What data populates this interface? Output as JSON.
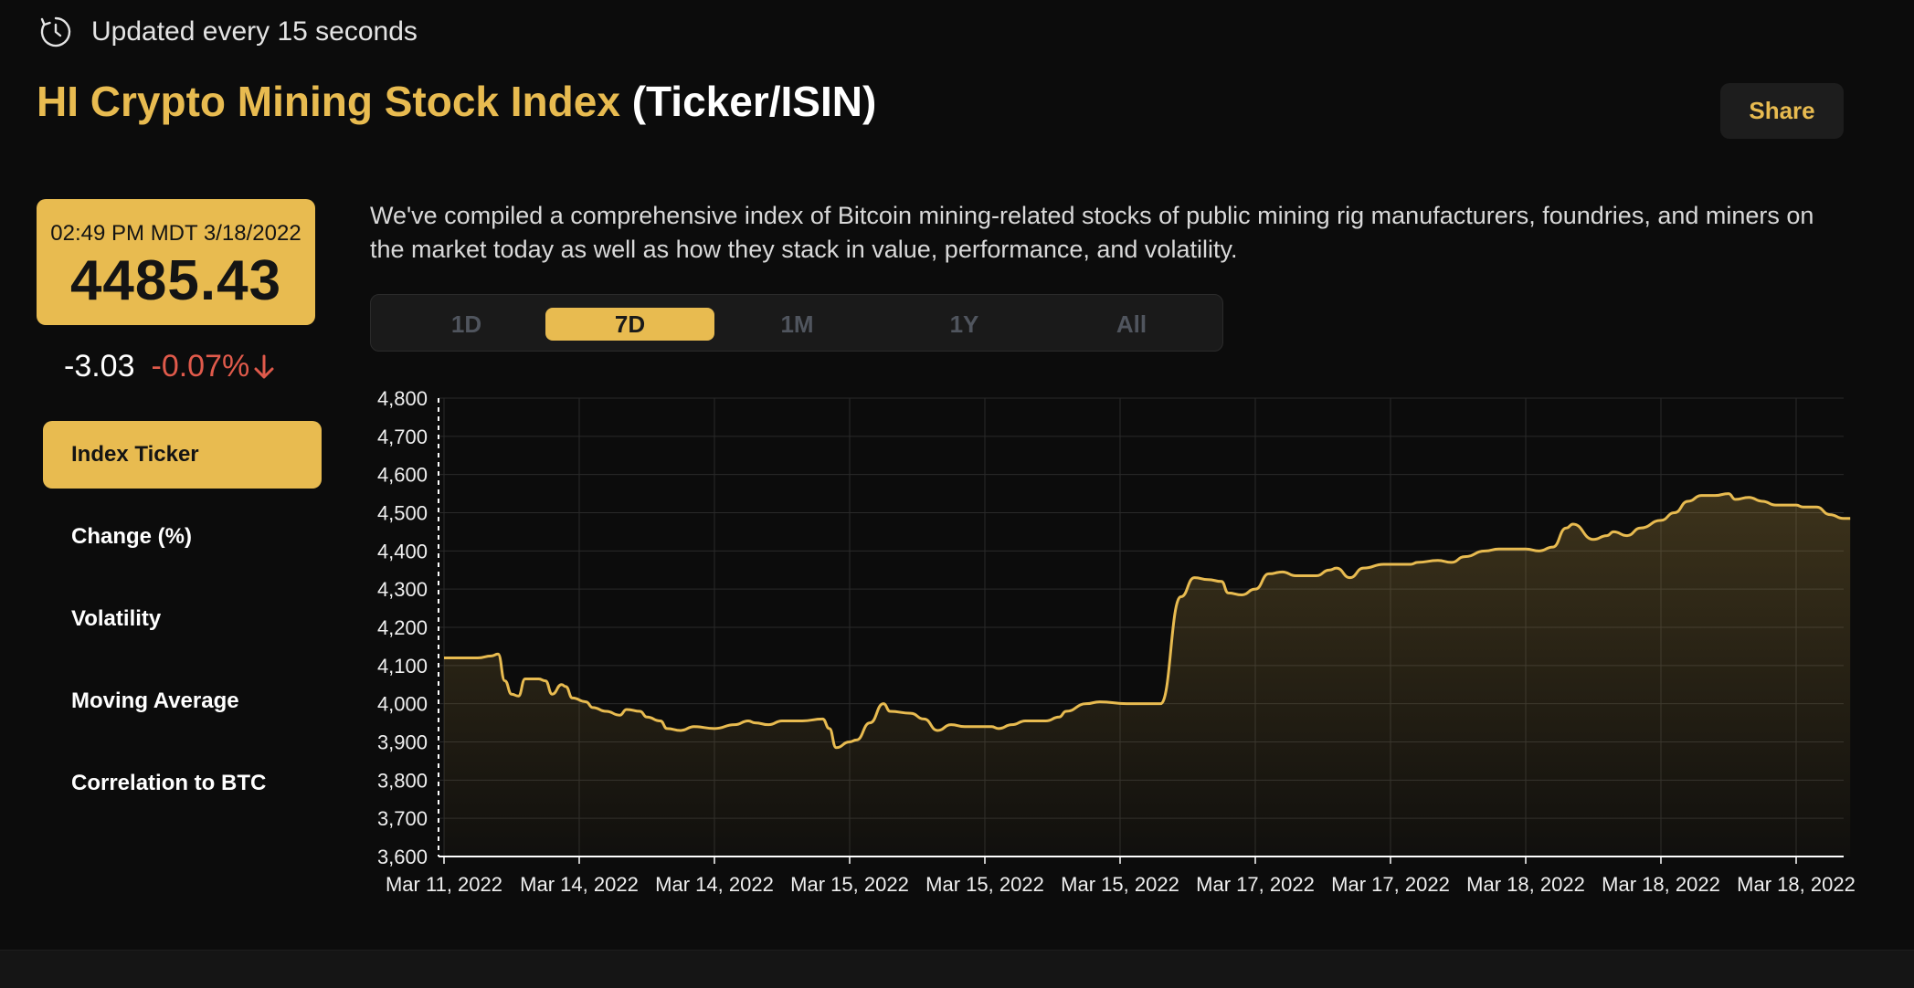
{
  "update": {
    "text": "Updated every 15 seconds",
    "icon": "refresh-icon"
  },
  "header": {
    "title_accent": "HI Crypto Mining Stock Index",
    "title_suffix": "(Ticker/ISIN)",
    "share_label": "Share"
  },
  "price_card": {
    "timestamp": "02:49 PM MDT 3/18/2022",
    "value": "4485.43"
  },
  "change": {
    "absolute": "-3.03",
    "percent": "-0.07%",
    "direction_icon": "arrow-down-icon"
  },
  "sidebar": {
    "items": [
      {
        "label": "Index Ticker",
        "active": true
      },
      {
        "label": "Change (%)",
        "active": false
      },
      {
        "label": "Volatility",
        "active": false
      },
      {
        "label": "Moving Average",
        "active": false
      },
      {
        "label": "Correlation to BTC",
        "active": false
      }
    ]
  },
  "description": "We've compiled a comprehensive index of Bitcoin mining-related stocks of public mining rig manufacturers, foundries, and miners on the market today as well as how they stack in value, performance, and volatility.",
  "range_tabs": [
    {
      "label": "1D",
      "active": false
    },
    {
      "label": "7D",
      "active": true
    },
    {
      "label": "1M",
      "active": false
    },
    {
      "label": "1Y",
      "active": false
    },
    {
      "label": "All",
      "active": false
    }
  ],
  "colors": {
    "accent": "#e8bb50",
    "negative": "#e05a4b",
    "background": "#0c0c0c"
  },
  "chart_data": {
    "type": "area",
    "title": "",
    "xlabel": "",
    "ylabel": "",
    "ylim": [
      3600,
      4800
    ],
    "y_ticks": [
      "4,800",
      "4,700",
      "4,600",
      "4,500",
      "4,400",
      "4,300",
      "4,200",
      "4,100",
      "4,000",
      "3,900",
      "3,800",
      "3,700",
      "3,600"
    ],
    "x_ticks": [
      "Mar 11, 2022",
      "Mar 14, 2022",
      "Mar 14, 2022",
      "Mar 15, 2022",
      "Mar 15, 2022",
      "Mar 15, 2022",
      "Mar 17, 2022",
      "Mar 17, 2022",
      "Mar 18, 2022",
      "Mar 18, 2022",
      "Mar 18, 2022"
    ],
    "grid": true,
    "x_range": [
      0,
      10.4
    ],
    "series": [
      {
        "color": "#e8bb50",
        "points": [
          [
            0,
            4120
          ],
          [
            0.25,
            4120
          ],
          [
            0.35,
            4125
          ],
          [
            0.4,
            4130
          ],
          [
            0.45,
            4060
          ],
          [
            0.5,
            4025
          ],
          [
            0.55,
            4020
          ],
          [
            0.6,
            4065
          ],
          [
            0.7,
            4065
          ],
          [
            0.75,
            4060
          ],
          [
            0.8,
            4025
          ],
          [
            0.87,
            4050
          ],
          [
            0.9,
            4045
          ],
          [
            0.95,
            4015
          ],
          [
            1.05,
            4005
          ],
          [
            1.1,
            3990
          ],
          [
            1.2,
            3980
          ],
          [
            1.3,
            3970
          ],
          [
            1.35,
            3985
          ],
          [
            1.45,
            3980
          ],
          [
            1.5,
            3965
          ],
          [
            1.6,
            3955
          ],
          [
            1.65,
            3935
          ],
          [
            1.75,
            3930
          ],
          [
            1.85,
            3940
          ],
          [
            2.0,
            3935
          ],
          [
            2.15,
            3945
          ],
          [
            2.25,
            3955
          ],
          [
            2.3,
            3950
          ],
          [
            2.4,
            3945
          ],
          [
            2.5,
            3955
          ],
          [
            2.65,
            3955
          ],
          [
            2.8,
            3960
          ],
          [
            2.85,
            3935
          ],
          [
            2.9,
            3885
          ],
          [
            3.0,
            3900
          ],
          [
            3.05,
            3905
          ],
          [
            3.15,
            3950
          ],
          [
            3.25,
            4000
          ],
          [
            3.3,
            3980
          ],
          [
            3.45,
            3975
          ],
          [
            3.55,
            3960
          ],
          [
            3.65,
            3930
          ],
          [
            3.75,
            3945
          ],
          [
            3.85,
            3940
          ],
          [
            4.05,
            3940
          ],
          [
            4.1,
            3935
          ],
          [
            4.2,
            3945
          ],
          [
            4.3,
            3955
          ],
          [
            4.45,
            3955
          ],
          [
            4.55,
            3965
          ],
          [
            4.6,
            3980
          ],
          [
            4.75,
            4000
          ],
          [
            4.85,
            4005
          ],
          [
            5.05,
            4000
          ],
          [
            5.15,
            4000
          ],
          [
            5.3,
            4000
          ],
          [
            5.45,
            4280
          ],
          [
            5.55,
            4330
          ],
          [
            5.65,
            4325
          ],
          [
            5.75,
            4320
          ],
          [
            5.8,
            4290
          ],
          [
            5.9,
            4285
          ],
          [
            6.0,
            4300
          ],
          [
            6.1,
            4340
          ],
          [
            6.2,
            4345
          ],
          [
            6.3,
            4335
          ],
          [
            6.45,
            4335
          ],
          [
            6.55,
            4350
          ],
          [
            6.6,
            4355
          ],
          [
            6.7,
            4330
          ],
          [
            6.8,
            4355
          ],
          [
            6.95,
            4365
          ],
          [
            7.15,
            4365
          ],
          [
            7.2,
            4370
          ],
          [
            7.35,
            4375
          ],
          [
            7.45,
            4370
          ],
          [
            7.55,
            4385
          ],
          [
            7.7,
            4400
          ],
          [
            7.8,
            4405
          ],
          [
            8.0,
            4405
          ],
          [
            8.1,
            4400
          ],
          [
            8.2,
            4410
          ],
          [
            8.3,
            4460
          ],
          [
            8.35,
            4470
          ],
          [
            8.5,
            4430
          ],
          [
            8.6,
            4440
          ],
          [
            8.65,
            4450
          ],
          [
            8.75,
            4440
          ],
          [
            8.85,
            4460
          ],
          [
            9.0,
            4480
          ],
          [
            9.1,
            4500
          ],
          [
            9.2,
            4530
          ],
          [
            9.3,
            4545
          ],
          [
            9.4,
            4545
          ],
          [
            9.5,
            4550
          ],
          [
            9.55,
            4535
          ],
          [
            9.65,
            4540
          ],
          [
            9.75,
            4530
          ],
          [
            9.85,
            4520
          ],
          [
            10.0,
            4520
          ],
          [
            10.05,
            4515
          ],
          [
            10.15,
            4515
          ],
          [
            10.25,
            4495
          ],
          [
            10.35,
            4485
          ],
          [
            10.4,
            4485
          ]
        ]
      }
    ]
  }
}
